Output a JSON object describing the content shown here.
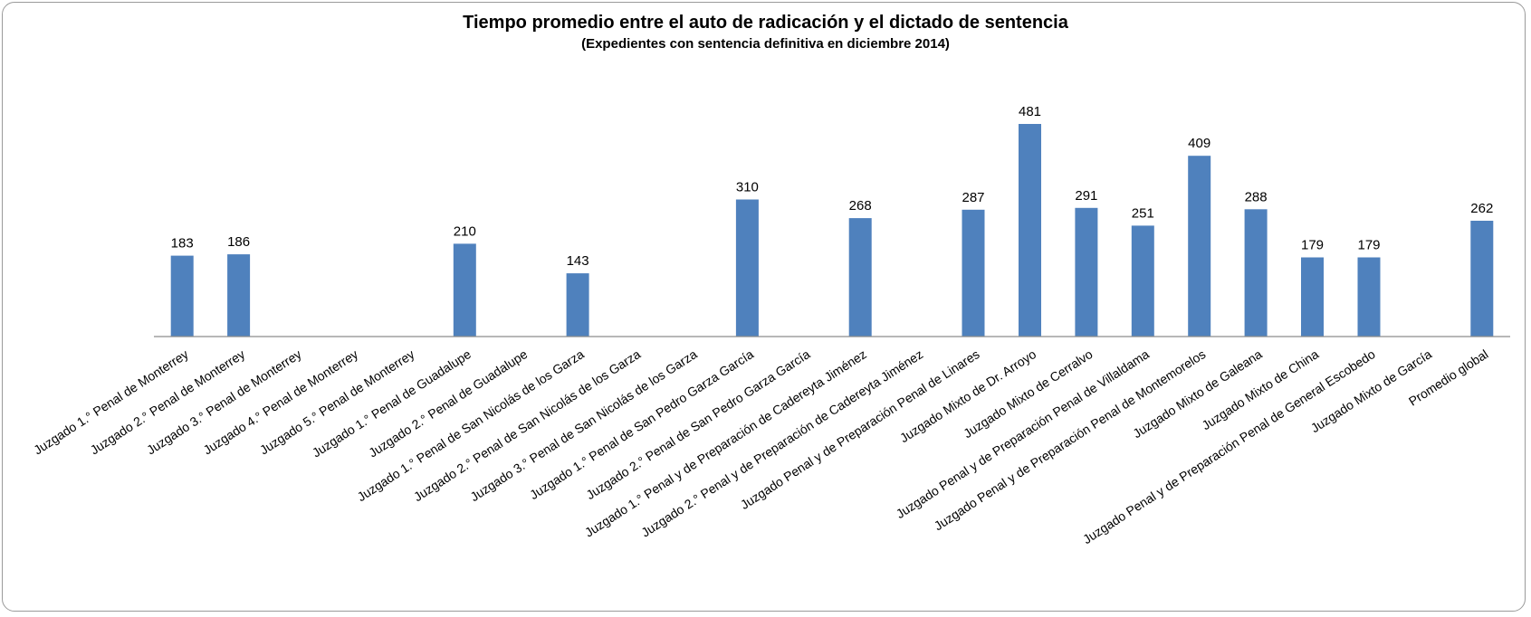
{
  "chart_data": {
    "type": "bar",
    "title": "Tiempo promedio entre el auto de radicación y el dictado de sentencia",
    "subtitle": "(Expedientes con sentencia definitiva en diciembre 2014)",
    "xlabel": "",
    "ylabel": "",
    "ylim": [
      0,
      520
    ],
    "grid": false,
    "bar_color": "#4f81bd",
    "categories": [
      "Juzgado 1.° Penal de Monterrey",
      "Juzgado 2.° Penal de Monterrey",
      "Juzgado 3.° Penal de Monterrey",
      "Juzgado 4.° Penal de Monterrey",
      "Juzgado 5.° Penal de Monterrey",
      "Juzgado 1.° Penal de Guadalupe",
      "Juzgado 2.° Penal de Guadalupe",
      "Juzgado 1.° Penal de San Nicolás de los Garza",
      "Juzgado 2.° Penal de San Nicolás de los Garza",
      "Juzgado 3.° Penal de San Nicolás de los Garza",
      "Juzgado 1.° Penal de San Pedro Garza García",
      "Juzgado 2.° Penal de San Pedro Garza García",
      "Juzgado 1.° Penal y de Preparación de Cadereyta Jiménez",
      "Juzgado 2.° Penal y de Preparación de Cadereyta Jiménez",
      "Juzgado Penal y de Preparación Penal de Linares",
      "Juzgado Mixto de Dr. Arroyo",
      "Juzgado Mixto de Cerralvo",
      "Juzgado Penal y de Preparación Penal de Villaldama",
      "Juzgado Penal y de Preparación Penal de Montemorelos",
      "Juzgado Mixto de Galeana",
      "Juzgado Mixto de China",
      "Juzgado Penal y de Preparación Penal de General Escobedo",
      "Juzgado Mixto de García",
      "Promedio global"
    ],
    "values": [
      183,
      186,
      null,
      null,
      null,
      210,
      null,
      143,
      null,
      null,
      310,
      null,
      268,
      null,
      287,
      481,
      291,
      251,
      409,
      288,
      179,
      179,
      null,
      262
    ]
  }
}
